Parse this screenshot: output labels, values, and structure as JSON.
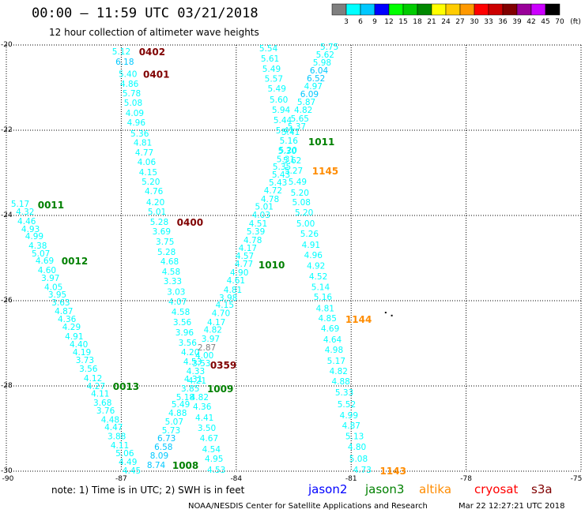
{
  "header": {
    "title": "00:00 – 11:59 UTC 03/21/2018",
    "subtitle": "12 hour collection of altimeter wave heights"
  },
  "legend": {
    "colors": [
      "#7f7f7f",
      "#00ffff",
      "#00c8ff",
      "#0000ff",
      "#00ff00",
      "#00cc00",
      "#008800",
      "#ffff00",
      "#ffcc00",
      "#ff9900",
      "#ff0000",
      "#cc0000",
      "#800000",
      "#990099",
      "#cc00ff",
      "#000000"
    ],
    "labels": [
      "3",
      "6",
      "9",
      "12",
      "15",
      "18",
      "21",
      "24",
      "27",
      "30",
      "33",
      "36",
      "39",
      "42",
      "45",
      "70"
    ],
    "unit": "(ft)"
  },
  "map": {
    "lon_range": [
      -90,
      -75
    ],
    "lat_range": [
      -30,
      -20
    ],
    "lon_ticks": [
      -90,
      -87,
      -84,
      -81,
      -78,
      -75
    ],
    "lon_tick_labels": [
      "-90",
      "-87",
      "-84",
      "-81",
      "-78",
      "-75"
    ],
    "lat_ticks": [
      -20,
      -22,
      -24,
      -26,
      -28,
      -30
    ],
    "lat_tick_labels": [
      "-20",
      "-22",
      "-24",
      "-26",
      "-28",
      "-30"
    ],
    "grid": true
  },
  "satellites": [
    {
      "name": "jason2",
      "color": "#0000ff"
    },
    {
      "name": "jason3",
      "color": "#008000"
    },
    {
      "name": "altika",
      "color": "#ff8c00"
    },
    {
      "name": "cryosat",
      "color": "#ff0000"
    },
    {
      "name": "s3a",
      "color": "#800000"
    }
  ],
  "tracks": [
    {
      "satellite": "s3a",
      "times": [
        [
          "0402",
          -20.17,
          -86.54
        ],
        [
          "0401",
          -20.69,
          -86.43
        ],
        [
          "0400",
          -24.17,
          -85.55
        ],
        [
          "0359",
          -27.52,
          -84.68
        ]
      ],
      "swh": [
        [
          "5.12",
          -20.17,
          -87.24
        ],
        [
          "6.18",
          -20.41,
          -87.15
        ],
        [
          "5.40",
          -20.69,
          -87.07
        ],
        [
          "4.86",
          -20.93,
          -87.03
        ],
        [
          "5.78",
          -21.15,
          -86.97
        ],
        [
          "5.08",
          -21.37,
          -86.93
        ],
        [
          "4.09",
          -21.61,
          -86.89
        ],
        [
          "4.96",
          -21.83,
          -86.85
        ],
        [
          "5.36",
          -22.09,
          -86.76
        ],
        [
          "4.81",
          -22.31,
          -86.68
        ],
        [
          "4.77",
          -22.54,
          -86.64
        ],
        [
          "4.06",
          -22.76,
          -86.58
        ],
        [
          "4.15",
          -23.0,
          -86.54
        ],
        [
          "5.20",
          -23.22,
          -86.47
        ],
        [
          "4.76",
          -23.44,
          -86.39
        ],
        [
          "4.20",
          -23.7,
          -86.35
        ],
        [
          "5.01",
          -23.93,
          -86.31
        ],
        [
          "5.28",
          -24.17,
          -86.25
        ],
        [
          "3.69",
          -24.39,
          -86.19
        ],
        [
          "3.75",
          -24.63,
          -86.1
        ],
        [
          "5.28",
          -24.87,
          -86.06
        ],
        [
          "4.68",
          -25.09,
          -85.98
        ],
        [
          "4.58",
          -25.33,
          -85.94
        ],
        [
          "3.33",
          -25.56,
          -85.9
        ],
        [
          "3.03",
          -25.81,
          -85.81
        ],
        [
          "4.07",
          -26.04,
          -85.77
        ],
        [
          "4.58",
          -26.28,
          -85.69
        ],
        [
          "3.56",
          -26.52,
          -85.65
        ],
        [
          "3.96",
          -26.76,
          -85.59
        ],
        [
          "3.56",
          -27.0,
          -85.51
        ],
        [
          "4.20",
          -27.22,
          -85.44
        ],
        [
          "4.53",
          -27.44,
          -85.38
        ],
        [
          "4.33",
          -27.67,
          -85.3
        ],
        [
          "4.21",
          -27.89,
          -85.26
        ],
        [
          "4.82",
          -28.28,
          -85.2
        ],
        [
          "4.36",
          -28.5,
          -85.13
        ],
        [
          "4.41",
          -28.76,
          -85.07
        ],
        [
          "3.50",
          -29.0,
          -85.01
        ],
        [
          "4.67",
          -29.24,
          -84.95
        ],
        [
          "4.54",
          -29.5,
          -84.89
        ],
        [
          "4.95",
          -29.72,
          -84.82
        ],
        [
          "4.53",
          -29.98,
          -84.76
        ]
      ]
    },
    {
      "satellite": "jason3",
      "times": [
        [
          "0011",
          -23.76,
          -89.18
        ],
        [
          "0012",
          -25.07,
          -88.56
        ],
        [
          "0013",
          -28.02,
          -87.22
        ]
      ],
      "swh": [
        [
          "5.17",
          -23.74,
          -89.88
        ],
        [
          "4.32",
          -23.93,
          -89.75
        ],
        [
          "4.46",
          -24.15,
          -89.71
        ],
        [
          "4.93",
          -24.33,
          -89.61
        ],
        [
          "4.99",
          -24.5,
          -89.51
        ],
        [
          "4.38",
          -24.72,
          -89.42
        ],
        [
          "5.07",
          -24.91,
          -89.34
        ],
        [
          "4.69",
          -25.07,
          -89.24
        ],
        [
          "4.60",
          -25.3,
          -89.18
        ],
        [
          "3.97",
          -25.48,
          -89.09
        ],
        [
          "4.05",
          -25.69,
          -89.01
        ],
        [
          "3.95",
          -25.87,
          -88.91
        ],
        [
          "3.63",
          -26.06,
          -88.82
        ],
        [
          "4.87",
          -26.26,
          -88.74
        ],
        [
          "4.36",
          -26.44,
          -88.66
        ],
        [
          "4.29",
          -26.63,
          -88.54
        ],
        [
          "4.91",
          -26.85,
          -88.47
        ],
        [
          "4.40",
          -27.04,
          -88.35
        ],
        [
          "4.19",
          -27.22,
          -88.27
        ],
        [
          "3.73",
          -27.41,
          -88.19
        ],
        [
          "3.56",
          -27.61,
          -88.1
        ],
        [
          "4.12",
          -27.83,
          -87.98
        ],
        [
          "4.27",
          -28.02,
          -87.9
        ],
        [
          "4.11",
          -28.19,
          -87.79
        ],
        [
          "3.68",
          -28.41,
          -87.73
        ],
        [
          "3.76",
          -28.59,
          -87.65
        ],
        [
          "4.48",
          -28.81,
          -87.53
        ],
        [
          "4.47",
          -28.98,
          -87.44
        ],
        [
          "3.88",
          -29.19,
          -87.36
        ],
        [
          "4.11",
          -29.41,
          -87.28
        ],
        [
          "5.06",
          -29.59,
          -87.15
        ],
        [
          "4.49",
          -29.8,
          -87.07
        ],
        [
          "4.45",
          -30.0,
          -86.97
        ]
      ]
    },
    {
      "satellite": "jason3",
      "times": [
        [
          "1008",
          -29.87,
          -85.67
        ],
        [
          "1009",
          -28.07,
          -84.76
        ],
        [
          "1010",
          -25.17,
          -83.42
        ],
        [
          "1011",
          -22.28,
          -82.12
        ]
      ],
      "swh": [
        [
          "8.74",
          -29.87,
          -86.33
        ],
        [
          "8.09",
          -29.65,
          -86.25
        ],
        [
          "6.58",
          -29.44,
          -86.14
        ],
        [
          "6.73",
          -29.24,
          -86.06
        ],
        [
          "5.73",
          -29.06,
          -85.94
        ],
        [
          "5.07",
          -28.85,
          -85.86
        ],
        [
          "4.88",
          -28.65,
          -85.77
        ],
        [
          "5.49",
          -28.44,
          -85.69
        ],
        [
          "5.18",
          -28.28,
          -85.57
        ],
        [
          "3.85",
          -28.07,
          -85.44
        ],
        [
          "4.31",
          -27.85,
          -85.36
        ],
        [
          "3.53",
          -27.48,
          -85.15
        ],
        [
          "4.00",
          -27.3,
          -85.07
        ],
        [
          "2.87",
          -27.11,
          -85.01
        ],
        [
          "3.97",
          -26.91,
          -84.91
        ],
        [
          "4.82",
          -26.69,
          -84.85
        ],
        [
          "4.17",
          -26.52,
          -84.76
        ],
        [
          "4.70",
          -26.31,
          -84.64
        ],
        [
          "4.15",
          -26.11,
          -84.54
        ],
        [
          "3.98",
          -25.94,
          -84.45
        ],
        [
          "4.81",
          -25.76,
          -84.33
        ],
        [
          "4.61",
          -25.54,
          -84.25
        ],
        [
          "4.90",
          -25.35,
          -84.16
        ],
        [
          "4.77",
          -25.15,
          -84.04
        ],
        [
          "4.57",
          -24.96,
          -84.02
        ],
        [
          "4.17",
          -24.78,
          -83.94
        ],
        [
          "4.78",
          -24.59,
          -83.81
        ],
        [
          "5.39",
          -24.39,
          -83.73
        ],
        [
          "4.51",
          -24.2,
          -83.67
        ],
        [
          "4.03",
          -24.0,
          -83.59
        ],
        [
          "5.01",
          -23.81,
          -83.51
        ],
        [
          "4.78",
          -23.63,
          -83.36
        ],
        [
          "4.72",
          -23.43,
          -83.28
        ],
        [
          "5.43",
          -23.24,
          -83.15
        ],
        [
          "5.43",
          -23.06,
          -83.07
        ],
        [
          "5.35",
          -22.87,
          -83.05
        ],
        [
          "5.31",
          -22.69,
          -82.95
        ],
        [
          "5.20",
          -22.48,
          -82.89
        ],
        [
          "5.16",
          -22.26,
          -82.87
        ],
        [
          "5.41",
          -22.06,
          -82.82
        ],
        [
          "5.37",
          -21.93,
          -82.66
        ],
        [
          "5.65",
          -21.74,
          -82.58
        ],
        [
          "4.82",
          -21.54,
          -82.49
        ],
        [
          "5.87",
          -21.35,
          -82.41
        ],
        [
          "6.09",
          -21.17,
          -82.33
        ],
        [
          "4.97",
          -20.98,
          -82.23
        ],
        [
          "6.52",
          -20.8,
          -82.16
        ],
        [
          "6.04",
          -20.61,
          -82.08
        ],
        [
          "5.98",
          -20.43,
          -82.0
        ],
        [
          "5.62",
          -20.24,
          -81.92
        ],
        [
          "5.75",
          -20.06,
          -81.81
        ]
      ]
    },
    {
      "satellite": "altika",
      "times": [
        [
          "1145",
          -22.96,
          -82.02
        ],
        [
          "1144",
          -26.44,
          -81.15
        ],
        [
          "1143",
          -30.0,
          -80.25
        ]
      ],
      "swh": [
        [
          "5.54",
          -20.09,
          -83.4
        ],
        [
          "5.61",
          -20.33,
          -83.36
        ],
        [
          "5.49",
          -20.57,
          -83.32
        ],
        [
          "5.57",
          -20.81,
          -83.26
        ],
        [
          "5.49",
          -21.04,
          -83.18
        ],
        [
          "5.60",
          -21.3,
          -83.13
        ],
        [
          "5.94",
          -21.54,
          -83.07
        ],
        [
          "5.44",
          -21.78,
          -83.03
        ],
        [
          "5.41",
          -22.02,
          -82.97
        ],
        [
          "5.30",
          -22.5,
          -82.91
        ],
        [
          "5.62",
          -22.72,
          -82.78
        ],
        [
          "5.27",
          -22.96,
          -82.74
        ],
        [
          "5.49",
          -23.22,
          -82.64
        ],
        [
          "5.20",
          -23.48,
          -82.58
        ],
        [
          "5.08",
          -23.7,
          -82.54
        ],
        [
          "5.20",
          -23.94,
          -82.47
        ],
        [
          "5.00",
          -24.2,
          -82.43
        ],
        [
          "5.26",
          -24.44,
          -82.33
        ],
        [
          "4.91",
          -24.7,
          -82.29
        ],
        [
          "4.96",
          -24.94,
          -82.23
        ],
        [
          "4.92",
          -25.19,
          -82.16
        ],
        [
          "4.52",
          -25.44,
          -82.1
        ],
        [
          "5.14",
          -25.69,
          -82.04
        ],
        [
          "5.16",
          -25.93,
          -81.98
        ],
        [
          "4.81",
          -26.19,
          -81.92
        ],
        [
          "4.85",
          -26.43,
          -81.86
        ],
        [
          "4.69",
          -26.67,
          -81.79
        ],
        [
          "4.64",
          -26.93,
          -81.73
        ],
        [
          "4.98",
          -27.17,
          -81.69
        ],
        [
          "5.17",
          -27.43,
          -81.63
        ],
        [
          "4.82",
          -27.67,
          -81.57
        ],
        [
          "4.88",
          -27.91,
          -81.51
        ],
        [
          "5.33",
          -28.17,
          -81.42
        ],
        [
          "5.52",
          -28.44,
          -81.36
        ],
        [
          "4.99",
          -28.7,
          -81.3
        ],
        [
          "4.87",
          -28.94,
          -81.24
        ],
        [
          "5.13",
          -29.19,
          -81.15
        ],
        [
          "4.80",
          -29.44,
          -81.09
        ],
        [
          "5.08",
          -29.72,
          -81.05
        ],
        [
          "4.73",
          -29.98,
          -80.95
        ]
      ]
    }
  ],
  "stray_points": [
    [
      -26.26,
      -80.12
    ],
    [
      -26.33,
      -79.96
    ]
  ],
  "footer": {
    "note": "note: 1) Time is in UTC; 2) SWH is in feet",
    "credit": "NOAA/NESDIS Center for Satellite Applications and Research",
    "timestamp": "Mar 22 12:27:21 UTC 2018"
  }
}
